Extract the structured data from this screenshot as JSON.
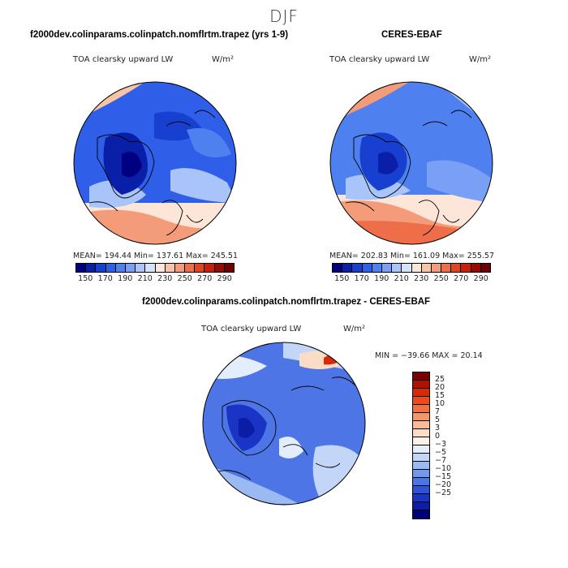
{
  "season": "DJF",
  "panels": {
    "model": {
      "title": "f2000dev.colinparams.colinpatch.nomflrtm.trapez (yrs 1-9)",
      "variable": "TOA clearsky upward LW",
      "units": "W/m²",
      "stats": "MEAN= 194.44   Min= 137.61   Max= 245.51"
    },
    "obs": {
      "title": "CERES-EBAF",
      "variable": "TOA clearsky upward LW",
      "units": "W/m²",
      "stats": "MEAN= 202.83   Min= 161.09   Max= 255.57"
    },
    "diff": {
      "title": "f2000dev.colinparams.colinpatch.nomflrtm.trapez - CERES-EBAF",
      "variable": "TOA clearsky upward LW",
      "units": "W/m²",
      "stats": "MIN = −39.66 MAX =  20.14"
    }
  },
  "abs_colorbar": {
    "colors": [
      "#000080",
      "#0a1fa8",
      "#1840d0",
      "#2f5fe8",
      "#4f80f0",
      "#7aa0f5",
      "#a8c4f8",
      "#d4e3fb",
      "#fde6d8",
      "#f8c4a8",
      "#f49c7a",
      "#ee6e4a",
      "#e24422",
      "#c81e0c",
      "#960a04",
      "#6e0000"
    ],
    "ticks": [
      "150",
      "170",
      "190",
      "210",
      "230",
      "250",
      "270",
      "290"
    ]
  },
  "diff_colorbar": {
    "colors": [
      "#7a0000",
      "#b01000",
      "#d82a06",
      "#ee4a1e",
      "#f3703e",
      "#f59668",
      "#f8bb97",
      "#fbdcc5",
      "#fdf0e6",
      "#e4edfb",
      "#c4d6f7",
      "#9bbaf3",
      "#7298ee",
      "#4d75e6",
      "#2f52da",
      "#1a34c6",
      "#0b1ca6",
      "#00007c"
    ],
    "ticks": [
      "25",
      "20",
      "15",
      "10",
      "7",
      "5",
      "3",
      "0",
      "−3",
      "−5",
      "−7",
      "−10",
      "−15",
      "−20",
      "−25"
    ]
  }
}
